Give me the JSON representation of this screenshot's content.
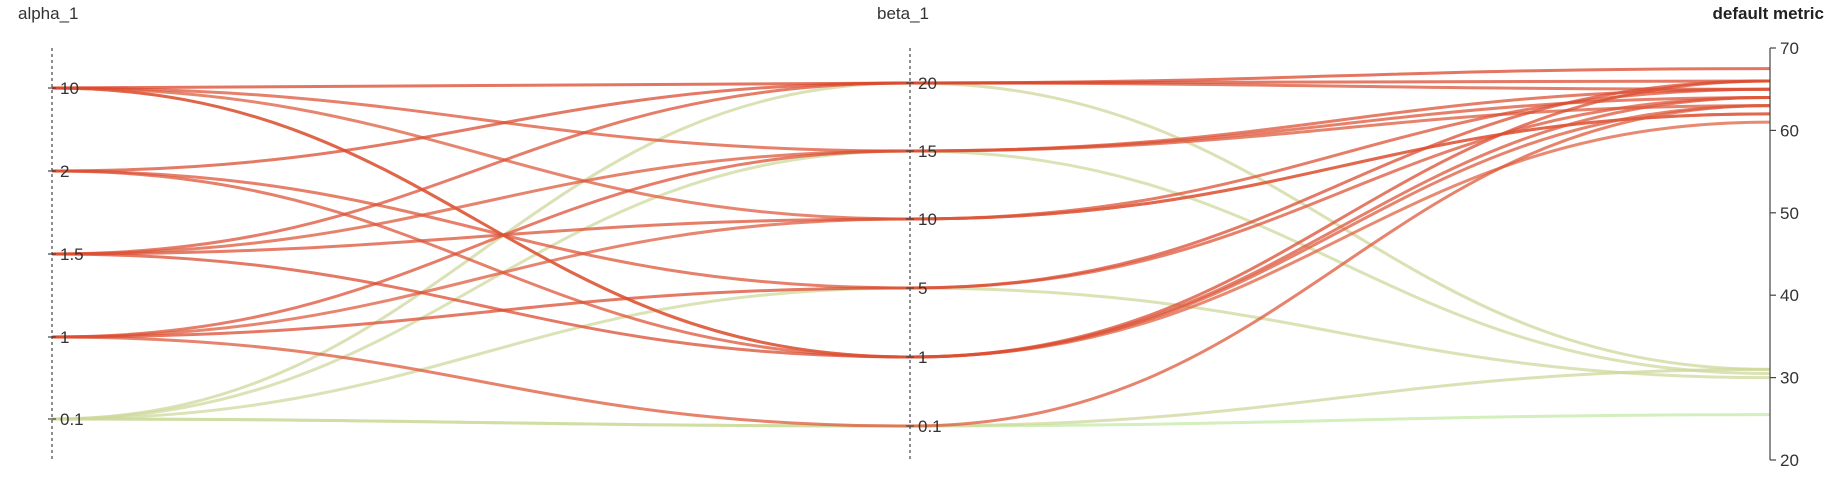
{
  "chart_data": {
    "type": "parallel-coordinates",
    "axes": [
      {
        "key": "alpha_1",
        "label": "alpha_1",
        "scale": "categorical",
        "ticks": [
          "10",
          "2",
          "1.5",
          "1",
          "0.1"
        ]
      },
      {
        "key": "beta_1",
        "label": "beta_1",
        "scale": "categorical",
        "ticks": [
          "20",
          "15",
          "10",
          "5",
          "1",
          "0.1"
        ]
      },
      {
        "key": "metric",
        "label": "default metric",
        "scale": "linear",
        "range": [
          20,
          70
        ],
        "ticks": [
          "70",
          "60",
          "50",
          "40",
          "30",
          "20"
        ]
      }
    ],
    "color_scale": {
      "low": "#c3eca8",
      "mid": "#efa078",
      "high": "#d9452a",
      "metric_range": [
        25,
        68
      ]
    },
    "lines": [
      {
        "alpha_1": "10",
        "beta_1": "20",
        "metric": 67.5
      },
      {
        "alpha_1": "10",
        "beta_1": "15",
        "metric": 64
      },
      {
        "alpha_1": "10",
        "beta_1": "10",
        "metric": 62
      },
      {
        "alpha_1": "10",
        "beta_1": "1",
        "metric": 63
      },
      {
        "alpha_1": "10",
        "beta_1": "1",
        "metric": 61
      },
      {
        "alpha_1": "2",
        "beta_1": "20",
        "metric": 66
      },
      {
        "alpha_1": "2",
        "beta_1": "5",
        "metric": 64
      },
      {
        "alpha_1": "2",
        "beta_1": "1",
        "metric": 64
      },
      {
        "alpha_1": "1.5",
        "beta_1": "20",
        "metric": 65
      },
      {
        "alpha_1": "1.5",
        "beta_1": "15",
        "metric": 63
      },
      {
        "alpha_1": "1.5",
        "beta_1": "10",
        "metric": 65
      },
      {
        "alpha_1": "1.5",
        "beta_1": "1",
        "metric": 66
      },
      {
        "alpha_1": "1",
        "beta_1": "15",
        "metric": 65
      },
      {
        "alpha_1": "1",
        "beta_1": "5",
        "metric": 66
      },
      {
        "alpha_1": "1",
        "beta_1": "10",
        "metric": 62
      },
      {
        "alpha_1": "1",
        "beta_1": "0.1",
        "metric": 63
      },
      {
        "alpha_1": "0.1",
        "beta_1": "20",
        "metric": 31
      },
      {
        "alpha_1": "0.1",
        "beta_1": "15",
        "metric": 30.5
      },
      {
        "alpha_1": "0.1",
        "beta_1": "5",
        "metric": 30
      },
      {
        "alpha_1": "0.1",
        "beta_1": "0.1",
        "metric": 31
      },
      {
        "alpha_1": "0.1",
        "beta_1": "0.1",
        "metric": 25.5
      }
    ]
  }
}
